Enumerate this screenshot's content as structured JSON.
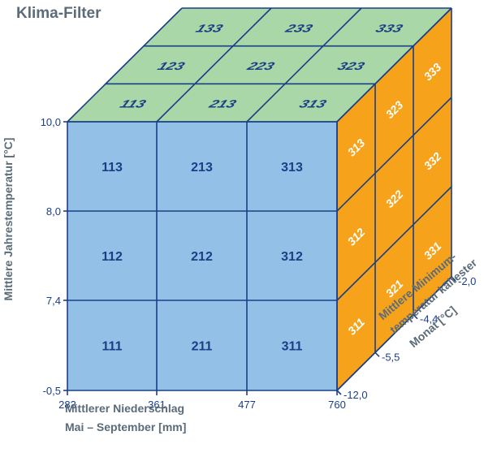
{
  "title": "Klima-Filter",
  "colors": {
    "front": "#92c0e6",
    "top": "#a9d7a8",
    "side": "#f6a31b",
    "grid_line": "#1a3f86",
    "label_dark": "#1a3f86",
    "label_side": "#ffffff",
    "axis_text": "#1a3f86",
    "axis_title": "#5b6b78"
  },
  "y_axis": {
    "label": "Mittlere Jahrestemperatur [°C]",
    "ticks": [
      "10,0",
      "8,0",
      "7,4",
      "-0,5"
    ]
  },
  "x_axis": {
    "label_line1": "Mittlerer Niederschlag",
    "label_line2": "Mai – September [mm]",
    "ticks": [
      "283",
      "361",
      "477",
      "760"
    ]
  },
  "z_axis": {
    "label_line1": "Mittlere Minimum-",
    "label_line2": "temperatur kältester",
    "label_line3": "Monat [°C]",
    "ticks": [
      "-12,0",
      "-5,5",
      "-4,4",
      "-2,0"
    ]
  },
  "front_cells": [
    [
      "113",
      "213",
      "313"
    ],
    [
      "112",
      "212",
      "312"
    ],
    [
      "111",
      "211",
      "311"
    ]
  ],
  "top_cells": [
    [
      "133",
      "233",
      "333"
    ],
    [
      "123",
      "223",
      "323"
    ],
    [
      "113",
      "213",
      "313"
    ]
  ],
  "side_cells": [
    [
      "313",
      "323",
      "333"
    ],
    [
      "312",
      "322",
      "332"
    ],
    [
      "311",
      "321",
      "331"
    ]
  ]
}
